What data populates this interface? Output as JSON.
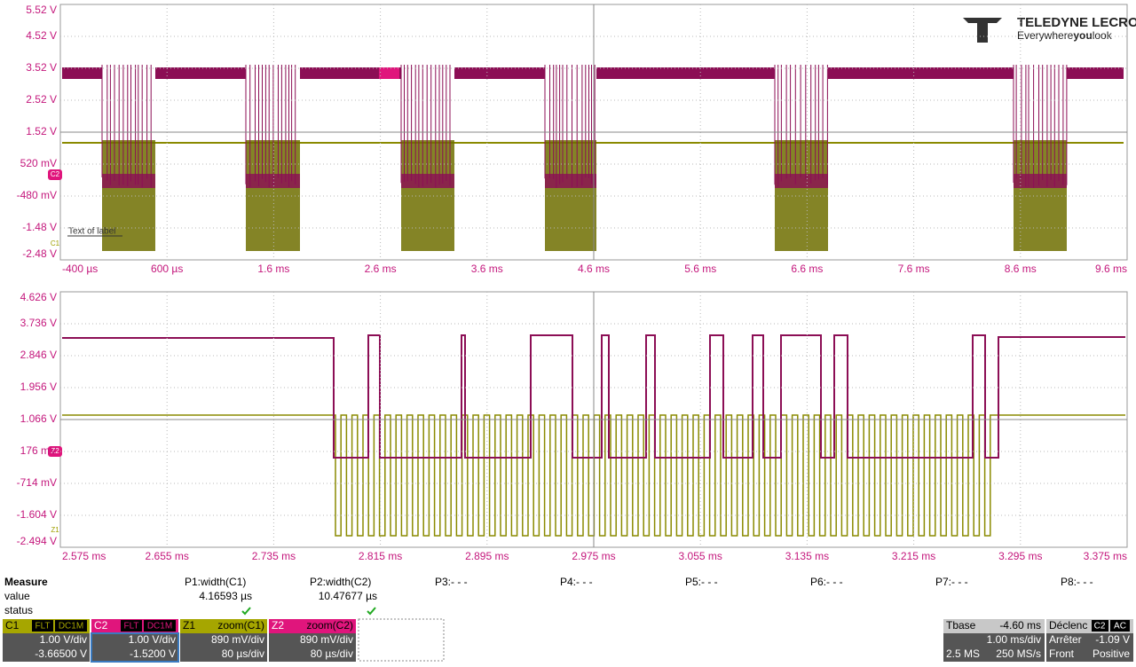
{
  "top_panel": {
    "y_labels": [
      "5.52 V",
      "4.52 V",
      "3.52 V",
      "2.52 V",
      "1.52 V",
      "520 mV",
      "-480 mV",
      "-1.48 V",
      "-2.48 V"
    ],
    "x_labels": [
      "-400 µs",
      "600 µs",
      "1.6 ms",
      "2.6 ms",
      "3.6 ms",
      "4.6 ms",
      "5.6 ms",
      "6.6 ms",
      "7.6 ms",
      "8.6 ms",
      "9.6 ms"
    ],
    "marker_c2": "C2",
    "marker_c1": "C1",
    "label_text": "Text of label"
  },
  "logo": {
    "brand": "TELEDYNE LECROY",
    "tagline_a": "Everywhere",
    "tagline_b": "you",
    "tagline_c": "look"
  },
  "bottom_panel": {
    "y_labels": [
      "4.626 V",
      "3.736 V",
      "2.846 V",
      "1.956 V",
      "1.066 V",
      "176 mV",
      "-714 mV",
      "-1.604 V",
      "-2.494 V"
    ],
    "x_labels": [
      "2.575 ms",
      "2.655 ms",
      "2.735 ms",
      "2.815 ms",
      "2.895 ms",
      "2.975 ms",
      "3.055 ms",
      "3.135 ms",
      "3.215 ms",
      "3.295 ms",
      "3.375 ms"
    ],
    "marker_z2": "Z2",
    "marker_z1": "Z1"
  },
  "measure": {
    "title": "Measure",
    "row_value": "value",
    "row_status": "status",
    "params": [
      {
        "name": "P1:width(C1)",
        "value": "4.16593 µs"
      },
      {
        "name": "P2:width(C2)",
        "value": "10.47677 µs"
      },
      {
        "name": "P3:- - -"
      },
      {
        "name": "P4:- - -"
      },
      {
        "name": "P5:- - -"
      },
      {
        "name": "P6:- - -"
      },
      {
        "name": "P7:- - -"
      },
      {
        "name": "P8:- - -"
      }
    ]
  },
  "channels": [
    {
      "id": "C1",
      "tag1": "FLT",
      "tag2": "DC1M",
      "line1": "1.00 V/div",
      "line2": "-3.66500 V"
    },
    {
      "id": "C2",
      "tag1": "FLT",
      "tag2": "DC1M",
      "line1": "1.00 V/div",
      "line2": "-1.5200 V"
    },
    {
      "id": "Z1",
      "source": "zoom(C1)",
      "line1": "890 mV/div",
      "line2": "80 µs/div"
    },
    {
      "id": "Z2",
      "source": "zoom(C2)",
      "line1": "890 mV/div",
      "line2": "80 µs/div"
    }
  ],
  "timebase": {
    "title": "Tbase",
    "offset": "-4.60 ms",
    "per_div": "1.00 ms/div",
    "samples": "2.5 MS",
    "rate": "250 MS/s"
  },
  "trigger": {
    "title": "Déclenc",
    "tag1": "C2",
    "tag2": "AC",
    "mode": "Arrêter",
    "level": "-1.09 V",
    "slope_label": "Front",
    "slope": "Positive"
  }
}
